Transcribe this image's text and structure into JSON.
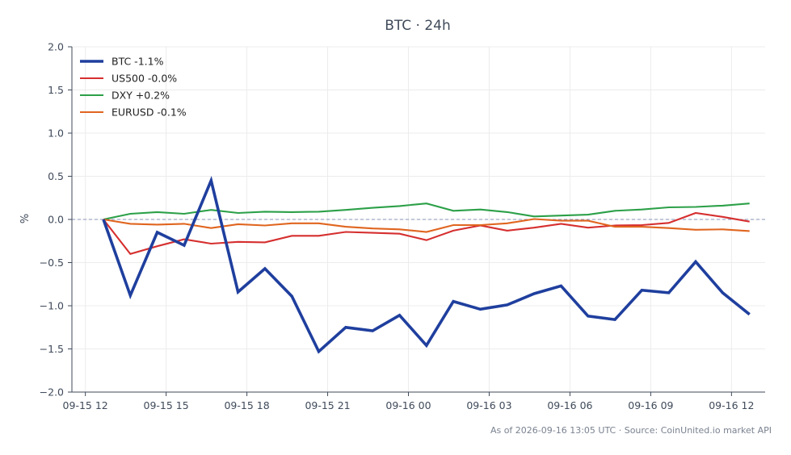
{
  "chart_data": {
    "type": "line",
    "title": "BTC · 24h",
    "xlabel": "",
    "ylabel": "%",
    "ylim": [
      -2.0,
      2.0
    ],
    "yticks": [
      "2.0",
      "1.5",
      "1.0",
      "0.5",
      "0.0",
      "−0.5",
      "−1.0",
      "−1.5",
      "−2.0"
    ],
    "ytick_values": [
      2.0,
      1.5,
      1.0,
      0.5,
      0.0,
      -0.5,
      -1.0,
      -1.5,
      -2.0
    ],
    "xlim": [
      -0.5,
      25.25
    ],
    "xticks": [
      {
        "label": "09-15 12",
        "pos": 0
      },
      {
        "label": "09-15 15",
        "pos": 3
      },
      {
        "label": "09-15 18",
        "pos": 6
      },
      {
        "label": "09-15 21",
        "pos": 9
      },
      {
        "label": "09-16 00",
        "pos": 12
      },
      {
        "label": "09-16 03",
        "pos": 15
      },
      {
        "label": "09-16 06",
        "pos": 18
      },
      {
        "label": "09-16 09",
        "pos": 21
      },
      {
        "label": "09-16 12",
        "pos": 24
      }
    ],
    "x": [
      0.67,
      1.67,
      2.67,
      3.67,
      4.67,
      5.67,
      6.67,
      7.67,
      8.67,
      9.67,
      10.67,
      11.67,
      12.67,
      13.67,
      14.67,
      15.67,
      16.67,
      17.67,
      18.67,
      19.67,
      20.67,
      21.67,
      22.67,
      23.67,
      24.67
    ],
    "grid": true,
    "legend_position": "top-left",
    "baseline": 0.0,
    "series": [
      {
        "name": "BTC -1.1%",
        "color": "#1f3f9e",
        "width": "bold",
        "values": [
          0.0,
          -0.88,
          -0.15,
          -0.3,
          0.45,
          -0.84,
          -0.57,
          -0.89,
          -1.53,
          -1.25,
          -1.29,
          -1.11,
          -1.46,
          -0.95,
          -1.04,
          -0.99,
          -0.86,
          -0.77,
          -1.12,
          -1.16,
          -0.82,
          -0.85,
          -0.49,
          -0.85,
          -1.1
        ]
      },
      {
        "name": "US500 -0.0%",
        "color": "#d62f2f",
        "width": "normal",
        "values": [
          0.0,
          -0.4,
          -0.31,
          -0.23,
          -0.28,
          -0.26,
          -0.265,
          -0.19,
          -0.19,
          -0.145,
          -0.155,
          -0.165,
          -0.24,
          -0.13,
          -0.07,
          -0.13,
          -0.095,
          -0.05,
          -0.095,
          -0.07,
          -0.065,
          -0.04,
          0.075,
          0.03,
          -0.025
        ]
      },
      {
        "name": "DXY +0.2%",
        "color": "#2ca048",
        "width": "normal",
        "values": [
          0.0,
          0.065,
          0.085,
          0.065,
          0.11,
          0.075,
          0.09,
          0.085,
          0.09,
          0.11,
          0.135,
          0.155,
          0.185,
          0.1,
          0.115,
          0.085,
          0.035,
          0.045,
          0.055,
          0.1,
          0.115,
          0.14,
          0.145,
          0.16,
          0.185
        ]
      },
      {
        "name": "EURUSD -0.1%",
        "color": "#e0651f",
        "width": "normal",
        "values": [
          0.0,
          -0.05,
          -0.06,
          -0.05,
          -0.1,
          -0.055,
          -0.07,
          -0.045,
          -0.045,
          -0.085,
          -0.105,
          -0.115,
          -0.145,
          -0.065,
          -0.065,
          -0.045,
          0.005,
          -0.015,
          -0.015,
          -0.085,
          -0.085,
          -0.1,
          -0.12,
          -0.115,
          -0.135
        ]
      }
    ]
  },
  "footer": {
    "note": "As of 2026-09-16 13:05 UTC · Source: CoinUnited.io market API"
  }
}
